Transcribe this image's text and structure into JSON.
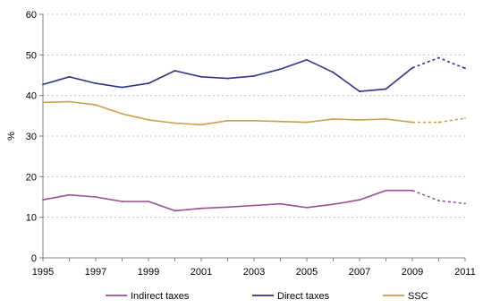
{
  "chart_data": {
    "type": "line",
    "title": "",
    "xlabel": "",
    "ylabel": "%",
    "ylim": [
      0,
      60
    ],
    "yticks": [
      0,
      10,
      20,
      30,
      40,
      50,
      60
    ],
    "xlim": [
      1995,
      2011
    ],
    "xticks": [
      1995,
      1997,
      1999,
      2001,
      2003,
      2005,
      2007,
      2009,
      2011
    ],
    "grid": true,
    "legend_position": "bottom",
    "projection_start_year": 2009,
    "series": [
      {
        "name": "Indirect taxes",
        "color": "#9b4f96",
        "x": [
          1995,
          1996,
          1997,
          1998,
          1999,
          2000,
          2001,
          2002,
          2003,
          2004,
          2005,
          2006,
          2007,
          2008,
          2009,
          2010,
          2011
        ],
        "values": [
          14.3,
          15.5,
          15.0,
          13.9,
          13.9,
          11.6,
          12.2,
          12.5,
          12.9,
          13.3,
          12.4,
          13.2,
          14.3,
          16.6,
          16.6,
          14.1,
          13.4
        ]
      },
      {
        "name": "Direct taxes",
        "color": "#2e3586",
        "x": [
          1995,
          1996,
          1997,
          1998,
          1999,
          2000,
          2001,
          2002,
          2003,
          2004,
          2005,
          2006,
          2007,
          2008,
          2009,
          2010,
          2011
        ],
        "values": [
          42.7,
          44.6,
          43.0,
          42.0,
          43.0,
          46.1,
          44.6,
          44.2,
          44.8,
          46.5,
          48.8,
          45.7,
          41.0,
          41.6,
          46.8,
          49.3,
          46.7
        ]
      },
      {
        "name": "SSC",
        "color": "#c9a04b",
        "x": [
          1995,
          1996,
          1997,
          1998,
          1999,
          2000,
          2001,
          2002,
          2003,
          2004,
          2005,
          2006,
          2007,
          2008,
          2009,
          2010,
          2011
        ],
        "values": [
          38.3,
          38.5,
          37.7,
          35.5,
          34.0,
          33.2,
          32.8,
          33.8,
          33.8,
          33.6,
          33.4,
          34.2,
          34.0,
          34.2,
          33.4,
          33.4,
          34.4
        ]
      }
    ]
  }
}
